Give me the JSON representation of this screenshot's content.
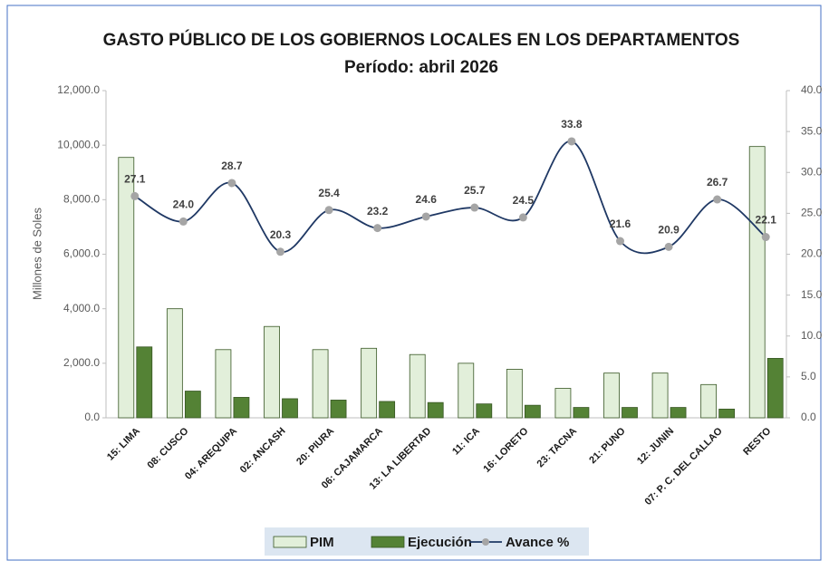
{
  "chart_data": {
    "type": "bar_line",
    "title": "GASTO PÚBLICO DE LOS GOBIERNOS LOCALES EN LOS DEPARTAMENTOS",
    "subtitle": "Período: abril 2026",
    "y_label": "Millones de Soles",
    "categories": [
      "15: LIMA",
      "08: CUSCO",
      "04: AREQUIPA",
      "02: ANCASH",
      "20: PIURA",
      "06: CAJAMARCA",
      "13: LA LIBERTAD",
      "11: ICA",
      "16: LORETO",
      "23: TACNA",
      "21: PUNO",
      "12: JUNIN",
      "07: P. C. DEL CALLAO",
      "RESTO"
    ],
    "series": [
      {
        "name": "PIM",
        "color": "#e2efda",
        "type": "bar",
        "values": [
          9550,
          4000,
          2500,
          3350,
          2500,
          2550,
          2320,
          2000,
          1780,
          1080,
          1640,
          1640,
          1220,
          9950
        ]
      },
      {
        "name": "Ejecución",
        "color": "#548235",
        "type": "bar",
        "values": [
          2600,
          980,
          750,
          700,
          650,
          600,
          560,
          510,
          460,
          380,
          380,
          380,
          320,
          2180
        ]
      },
      {
        "name": "Avance %",
        "color": "#1f3864",
        "type": "line",
        "axis": "y2",
        "values": [
          27.1,
          24.0,
          28.7,
          20.3,
          25.4,
          23.2,
          24.6,
          25.7,
          24.5,
          33.8,
          21.6,
          20.9,
          26.7,
          22.1
        ],
        "value_labels": [
          "27.1",
          "24.0",
          "28.7",
          "20.3",
          "25.4",
          "23.2",
          "24.6",
          "25.7",
          "24.5",
          "33.8",
          "21.6",
          "20.9",
          "26.7",
          "22.1"
        ]
      }
    ],
    "ylim": [
      0,
      12000
    ],
    "yticks": [
      {
        "value": 0,
        "label": "0.0"
      },
      {
        "value": 2000,
        "label": "2,000.0"
      },
      {
        "value": 4000,
        "label": "4,000.0"
      },
      {
        "value": 6000,
        "label": "6,000.0"
      },
      {
        "value": 8000,
        "label": "8,000.0"
      },
      {
        "value": 10000,
        "label": "10,000.0"
      },
      {
        "value": 12000,
        "label": "12,000.0"
      }
    ],
    "y2lim": [
      0,
      40
    ],
    "y2ticks": [
      {
        "value": 0,
        "label": "0.0"
      },
      {
        "value": 5,
        "label": "5.0"
      },
      {
        "value": 10,
        "label": "10.0"
      },
      {
        "value": 15,
        "label": "15.0"
      },
      {
        "value": 20,
        "label": "20.0"
      },
      {
        "value": 25,
        "label": "25.0"
      },
      {
        "value": 30,
        "label": "30.0"
      },
      {
        "value": 35,
        "label": "35.0"
      },
      {
        "value": 40,
        "label": "40.0"
      }
    ],
    "legend": "bottom"
  }
}
